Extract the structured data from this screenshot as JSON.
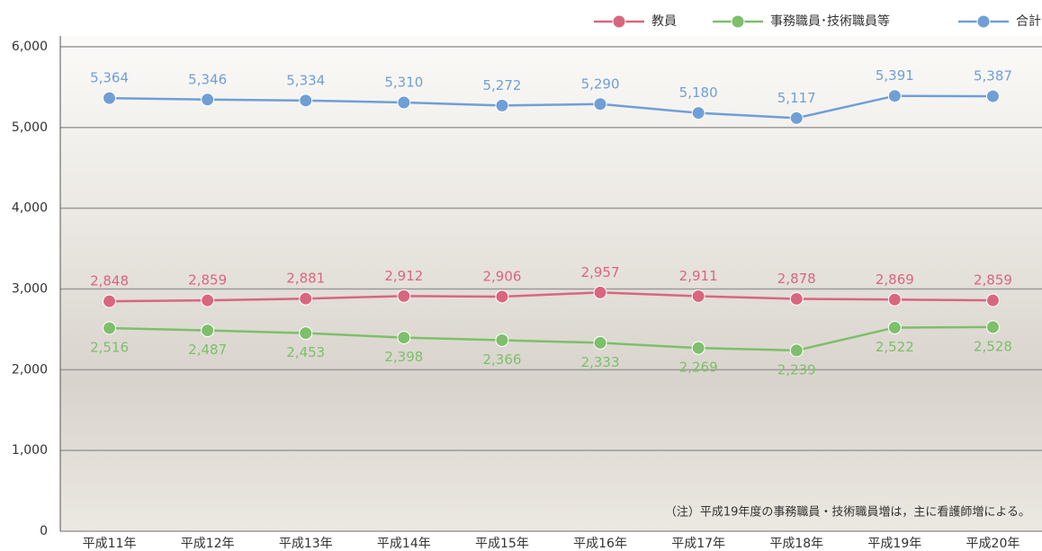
{
  "chart_data": {
    "type": "line",
    "categories": [
      "平成11年",
      "平成12年",
      "平成13年",
      "平成14年",
      "平成15年",
      "平成16年",
      "平成17年",
      "平成18年",
      "平成19年",
      "平成20年"
    ],
    "series": [
      {
        "name": "教員",
        "color": "#d9667f",
        "values": [
          2848,
          2859,
          2881,
          2912,
          2906,
          2957,
          2911,
          2878,
          2869,
          2859
        ],
        "value_labels": [
          "2,848",
          "2,859",
          "2,881",
          "2,912",
          "2,906",
          "2,957",
          "2,911",
          "2,878",
          "2,869",
          "2,859"
        ]
      },
      {
        "name": "事務職員･技術職員等",
        "color": "#7dbf6a",
        "values": [
          2516,
          2487,
          2453,
          2398,
          2366,
          2333,
          2269,
          2239,
          2522,
          2528
        ],
        "value_labels": [
          "2,516",
          "2,487",
          "2,453",
          "2,398",
          "2,366",
          "2,333",
          "2,269",
          "2,239",
          "2,522",
          "2,528"
        ]
      },
      {
        "name": "合計",
        "color": "#6f9fd6",
        "values": [
          5364,
          5346,
          5334,
          5310,
          5272,
          5290,
          5180,
          5117,
          5391,
          5387
        ],
        "value_labels": [
          "5,364",
          "5,346",
          "5,334",
          "5,310",
          "5,272",
          "5,290",
          "5,180",
          "5,117",
          "5,391",
          "5,387"
        ]
      }
    ],
    "ylim": [
      0,
      6000
    ],
    "yticks": [
      0,
      {
        "value": 1000,
        "label": "1,000"
      },
      {
        "value": 2000,
        "label": "2,000"
      },
      {
        "value": 3000,
        "label": "3,000"
      },
      {
        "value": 4000,
        "label": "4,000"
      },
      {
        "value": 5000,
        "label": "5,000"
      },
      {
        "value": 6000,
        "label": "6,000"
      }
    ],
    "grid": true,
    "legend": "top-right",
    "note": "（注）平成19年度の事務職員・技術職員増は，主に看護師増による。"
  }
}
